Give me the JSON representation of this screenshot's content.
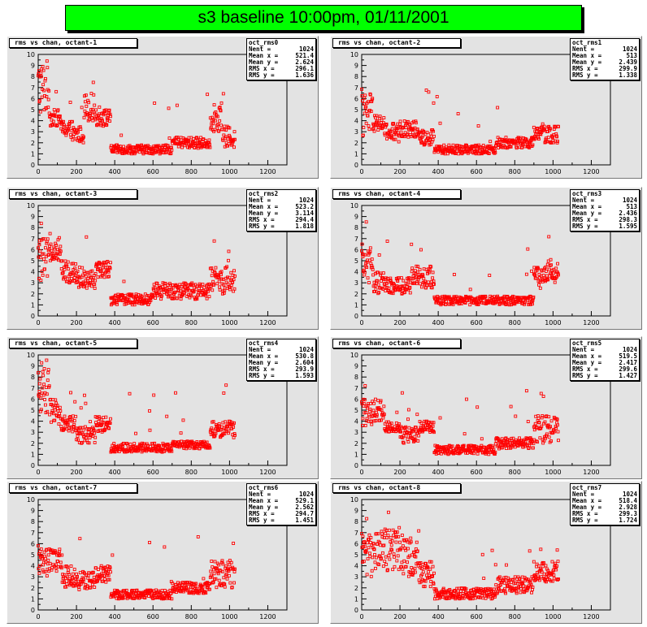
{
  "page": {
    "title": "s3 baseline 10:00pm, 01/11/2001"
  },
  "colors": {
    "banner": "#00ff00",
    "pad": "#e3e3e3",
    "marker": "#ff0000"
  },
  "pads": [
    {
      "title": "rms vs chan, octant-1",
      "stats": {
        "name": "oct_rms0",
        "rows": [
          [
            "Nent =",
            "1024"
          ],
          [
            "Mean x =",
            "521.4"
          ],
          [
            "Mean y =",
            "2.624"
          ],
          [
            "RMS x =",
            "296.1"
          ],
          [
            "RMS y =",
            "1.636"
          ]
        ]
      }
    },
    {
      "title": "rms vs chan, octant-2",
      "stats": {
        "name": "oct_rms1",
        "rows": [
          [
            "Nent =",
            "1024"
          ],
          [
            "Mean x =",
            "513"
          ],
          [
            "Mean y =",
            "2.439"
          ],
          [
            "RMS x =",
            "299.9"
          ],
          [
            "RMS y =",
            "1.338"
          ]
        ]
      }
    },
    {
      "title": "rms vs chan, octant-3",
      "stats": {
        "name": "oct_rms2",
        "rows": [
          [
            "Nent =",
            "1024"
          ],
          [
            "Mean x =",
            "523.2"
          ],
          [
            "Mean y =",
            "3.114"
          ],
          [
            "RMS x =",
            "294.4"
          ],
          [
            "RMS y =",
            "1.818"
          ]
        ]
      }
    },
    {
      "title": "rms vs chan, octant-4",
      "stats": {
        "name": "oct_rms3",
        "rows": [
          [
            "Nent =",
            "1024"
          ],
          [
            "Mean x =",
            "513"
          ],
          [
            "Mean y =",
            "2.436"
          ],
          [
            "RMS x =",
            "298.3"
          ],
          [
            "RMS y =",
            "1.595"
          ]
        ]
      }
    },
    {
      "title": "rms vs chan, octant-5",
      "stats": {
        "name": "oct_rms4",
        "rows": [
          [
            "Nent =",
            "1024"
          ],
          [
            "Mean x =",
            "530.8"
          ],
          [
            "Mean y =",
            "2.604"
          ],
          [
            "RMS x =",
            "293.9"
          ],
          [
            "RMS y =",
            "1.593"
          ]
        ]
      }
    },
    {
      "title": "rms vs chan, octant-6",
      "stats": {
        "name": "oct_rms5",
        "rows": [
          [
            "Nent =",
            "1024"
          ],
          [
            "Mean x =",
            "519.5"
          ],
          [
            "Mean y =",
            "2.417"
          ],
          [
            "RMS x =",
            "299.6"
          ],
          [
            "RMS y =",
            "1.427"
          ]
        ]
      }
    },
    {
      "title": "rms vs chan, octant-7",
      "stats": {
        "name": "oct_rms6",
        "rows": [
          [
            "Nent =",
            "1024"
          ],
          [
            "Mean x =",
            "529.1"
          ],
          [
            "Mean y =",
            "2.562"
          ],
          [
            "RMS x =",
            "294.7"
          ],
          [
            "RMS y =",
            "1.451"
          ]
        ]
      }
    },
    {
      "title": "rms vs chan, octant-8",
      "stats": {
        "name": "oct_rms7",
        "rows": [
          [
            "Nent =",
            "1024"
          ],
          [
            "Mean x =",
            "518.4"
          ],
          [
            "Mean y =",
            "2.928"
          ],
          [
            "RMS x =",
            "299.3"
          ],
          [
            "RMS y =",
            "1.724"
          ]
        ]
      }
    }
  ],
  "chart_data": [
    {
      "type": "scatter",
      "title": "rms vs chan, octant-1",
      "xlim": [
        0,
        1300
      ],
      "ylim": [
        0,
        10
      ],
      "xticks": [
        0,
        200,
        400,
        600,
        800,
        1000,
        1200
      ],
      "yticks": [
        0,
        1,
        2,
        3,
        4,
        5,
        6,
        7,
        8,
        9,
        10
      ],
      "segments": [
        [
          0,
          60,
          4.5,
          9.5
        ],
        [
          60,
          120,
          3.5,
          5.0
        ],
        [
          120,
          180,
          2.5,
          4.0
        ],
        [
          180,
          240,
          2.0,
          3.5
        ],
        [
          240,
          300,
          4.0,
          6.5
        ],
        [
          300,
          380,
          3.5,
          5.0
        ],
        [
          380,
          700,
          1.0,
          1.8
        ],
        [
          700,
          900,
          1.5,
          2.5
        ],
        [
          900,
          960,
          3.0,
          5.5
        ],
        [
          960,
          1030,
          1.5,
          3.5
        ]
      ]
    },
    {
      "type": "scatter",
      "title": "rms vs chan, octant-2",
      "xlim": [
        0,
        1300
      ],
      "ylim": [
        0,
        10
      ],
      "xticks": [
        0,
        200,
        400,
        600,
        800,
        1000,
        1200
      ],
      "yticks": [
        0,
        1,
        2,
        3,
        4,
        5,
        6,
        7,
        8,
        9,
        10
      ],
      "segments": [
        [
          0,
          60,
          2.5,
          6.5
        ],
        [
          60,
          120,
          3.0,
          4.5
        ],
        [
          120,
          200,
          2.0,
          3.8
        ],
        [
          200,
          300,
          2.5,
          4.0
        ],
        [
          300,
          380,
          1.8,
          3.2
        ],
        [
          380,
          700,
          1.0,
          1.8
        ],
        [
          700,
          900,
          1.5,
          2.5
        ],
        [
          900,
          1030,
          2.0,
          3.5
        ]
      ]
    },
    {
      "type": "scatter",
      "title": "rms vs chan, octant-3",
      "xlim": [
        0,
        1300
      ],
      "ylim": [
        0,
        10
      ],
      "xticks": [
        0,
        200,
        400,
        600,
        800,
        1000,
        1200
      ],
      "yticks": [
        0,
        1,
        2,
        3,
        4,
        5,
        6,
        7,
        8,
        9,
        10
      ],
      "segments": [
        [
          0,
          60,
          3.0,
          7.0
        ],
        [
          60,
          120,
          5.0,
          7.0
        ],
        [
          120,
          200,
          3.0,
          5.0
        ],
        [
          200,
          300,
          2.5,
          4.5
        ],
        [
          300,
          380,
          3.5,
          5.0
        ],
        [
          380,
          600,
          1.0,
          2.0
        ],
        [
          600,
          900,
          1.5,
          3.0
        ],
        [
          900,
          1030,
          2.0,
          4.5
        ]
      ]
    },
    {
      "type": "scatter",
      "title": "rms vs chan, octant-4",
      "xlim": [
        0,
        1300
      ],
      "ylim": [
        0,
        10
      ],
      "xticks": [
        0,
        200,
        400,
        600,
        800,
        1000,
        1200
      ],
      "yticks": [
        0,
        1,
        2,
        3,
        4,
        5,
        6,
        7,
        8,
        9,
        10
      ],
      "segments": [
        [
          0,
          60,
          3.0,
          6.5
        ],
        [
          60,
          120,
          2.0,
          4.0
        ],
        [
          120,
          260,
          2.0,
          3.5
        ],
        [
          260,
          380,
          2.5,
          4.5
        ],
        [
          380,
          900,
          1.0,
          1.8
        ],
        [
          900,
          960,
          2.5,
          4.5
        ],
        [
          960,
          1030,
          3.0,
          5.0
        ]
      ]
    },
    {
      "type": "scatter",
      "title": "rms vs chan, octant-5",
      "xlim": [
        0,
        1300
      ],
      "ylim": [
        0,
        10
      ],
      "xticks": [
        0,
        200,
        400,
        600,
        800,
        1000,
        1200
      ],
      "yticks": [
        0,
        1,
        2,
        3,
        4,
        5,
        6,
        7,
        8,
        9,
        10
      ],
      "segments": [
        [
          0,
          60,
          4.5,
          9.0
        ],
        [
          60,
          120,
          3.5,
          6.0
        ],
        [
          120,
          200,
          3.0,
          4.5
        ],
        [
          200,
          300,
          2.0,
          3.5
        ],
        [
          300,
          380,
          3.0,
          4.5
        ],
        [
          380,
          700,
          1.2,
          2.0
        ],
        [
          700,
          900,
          1.5,
          2.2
        ],
        [
          900,
          1030,
          2.5,
          4.0
        ]
      ]
    },
    {
      "type": "scatter",
      "title": "rms vs chan, octant-6",
      "xlim": [
        0,
        1300
      ],
      "ylim": [
        0,
        10
      ],
      "xticks": [
        0,
        200,
        400,
        600,
        800,
        1000,
        1200
      ],
      "yticks": [
        0,
        1,
        2,
        3,
        4,
        5,
        6,
        7,
        8,
        9,
        10
      ],
      "segments": [
        [
          0,
          60,
          3.5,
          6.0
        ],
        [
          60,
          120,
          4.0,
          6.0
        ],
        [
          120,
          200,
          3.0,
          4.0
        ],
        [
          200,
          300,
          2.0,
          3.5
        ],
        [
          300,
          380,
          3.0,
          4.0
        ],
        [
          380,
          700,
          1.0,
          1.8
        ],
        [
          700,
          900,
          1.5,
          2.5
        ],
        [
          900,
          1030,
          2.0,
          4.5
        ]
      ]
    },
    {
      "type": "scatter",
      "title": "rms vs chan, octant-7",
      "xlim": [
        0,
        1300
      ],
      "ylim": [
        0,
        10
      ],
      "xticks": [
        0,
        200,
        400,
        600,
        800,
        1000,
        1200
      ],
      "yticks": [
        0,
        1,
        2,
        3,
        4,
        5,
        6,
        7,
        8,
        9,
        10
      ],
      "segments": [
        [
          0,
          60,
          3.0,
          6.0
        ],
        [
          60,
          120,
          3.5,
          5.5
        ],
        [
          120,
          200,
          2.0,
          4.0
        ],
        [
          200,
          300,
          1.8,
          3.5
        ],
        [
          300,
          380,
          2.5,
          4.0
        ],
        [
          380,
          700,
          1.0,
          1.8
        ],
        [
          700,
          900,
          1.5,
          2.5
        ],
        [
          900,
          1030,
          2.0,
          4.5
        ]
      ]
    },
    {
      "type": "scatter",
      "title": "rms vs chan, octant-8",
      "xlim": [
        0,
        1300
      ],
      "ylim": [
        0,
        10
      ],
      "xticks": [
        0,
        200,
        400,
        600,
        800,
        1000,
        1200
      ],
      "yticks": [
        0,
        1,
        2,
        3,
        4,
        5,
        6,
        7,
        8,
        9,
        10
      ],
      "segments": [
        [
          0,
          60,
          3.0,
          7.0
        ],
        [
          60,
          200,
          3.5,
          7.5
        ],
        [
          200,
          300,
          3.0,
          6.5
        ],
        [
          300,
          380,
          2.0,
          4.5
        ],
        [
          380,
          700,
          1.0,
          2.0
        ],
        [
          700,
          900,
          1.5,
          3.0
        ],
        [
          900,
          1030,
          2.5,
          4.5
        ]
      ]
    }
  ]
}
